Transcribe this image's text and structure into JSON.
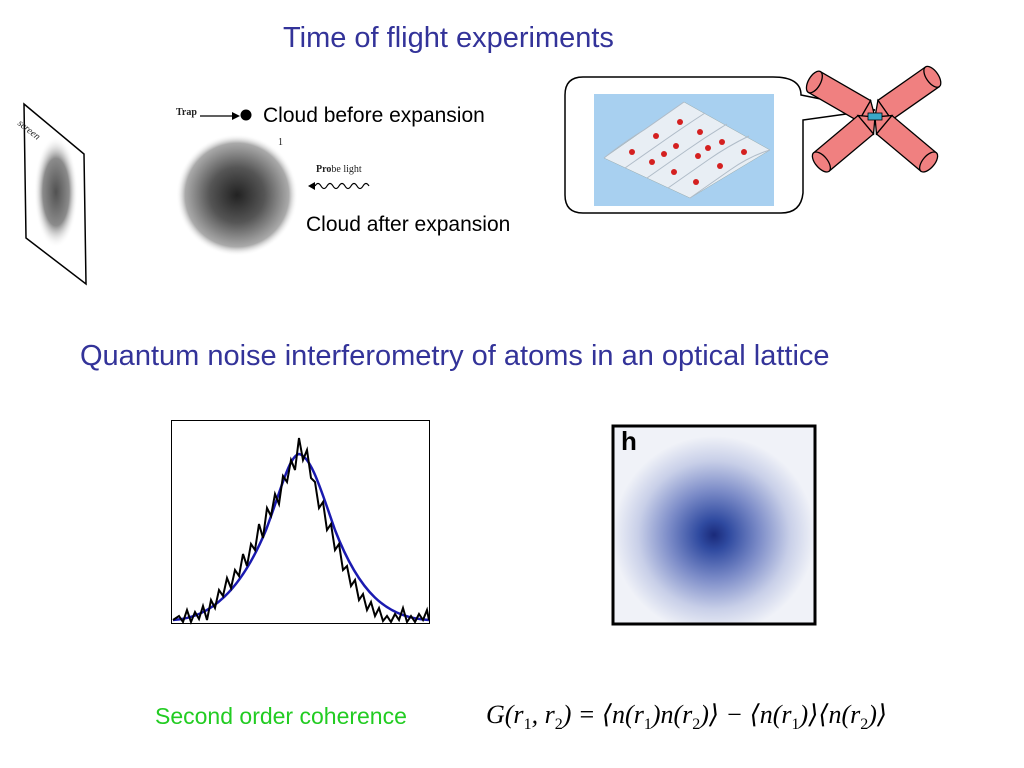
{
  "slide": {
    "title": "Time of flight experiments",
    "subtitle": "Quantum noise interferometry of atoms in an optical lattice",
    "cloud_before_label": "Cloud before expansion",
    "cloud_after_label": "Cloud after expansion",
    "trap_label": "Trap",
    "probe_label_bold": "Pro",
    "probe_label_rest": "be light",
    "screen_label": "screen",
    "marker_1": "1",
    "panel_letter": "h",
    "coherence_label": "Second order coherence",
    "formula": {
      "lhs": "G(r",
      "sub1": "1",
      "comma": ", r",
      "sub2": "2",
      "eq": ") = ⟨n(r",
      "m1": ")n(r",
      "m2": ")⟩ − ⟨n(r",
      "m3": ")⟩⟨n(r",
      "end": ")⟩"
    }
  },
  "colors": {
    "title": "#333399",
    "coherence": "#22cc22",
    "lattice_background": "#a8d0f0",
    "laser": "#f08080",
    "fit_curve": "#1a1ab0"
  },
  "icons": [
    "screen-panel",
    "atom-cloud",
    "trap-arrow",
    "wavy-probe-arrow",
    "optical-lattice",
    "laser-beam",
    "density-image"
  ]
}
